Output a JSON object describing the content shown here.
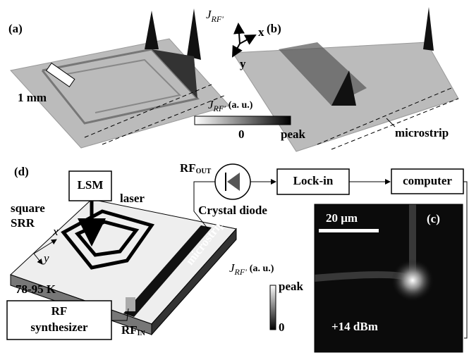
{
  "panel_a": {
    "label": "(a)",
    "scale_bar": "1 mm"
  },
  "panel_b": {
    "label": "(b)",
    "microstrip": "microstrip"
  },
  "axis_label": {
    "symbol": "J",
    "subscript": "RF'"
  },
  "axes": {
    "x": "x",
    "y": "y"
  },
  "colorbar_top": {
    "symbol": "J",
    "subscript": "RF'",
    "unit": "(a. u.)",
    "min": "0",
    "max": "peak"
  },
  "panel_d": {
    "label": "(d)",
    "lsm": "LSM",
    "laser": "laser",
    "srr": [
      "square",
      "SRR"
    ],
    "x": "x",
    "y": "y",
    "temperature": "78-95 K",
    "synthesizer": [
      "RF",
      "synthesizer"
    ],
    "rf_in": {
      "main": "RF",
      "sub": "IN"
    },
    "rf_out": {
      "main": "RF",
      "sub": "OUT"
    },
    "diode": "Crystal diode",
    "lockin": "Lock-in",
    "computer": "computer",
    "microstrip": "microstrip"
  },
  "panel_c": {
    "label": "(c)",
    "scale_bar": "20 μm",
    "power": "+14 dBm"
  },
  "colorbar_c": {
    "symbol": "J",
    "subscript": "RF'",
    "unit": "(a. u.)",
    "max": "peak",
    "min": "0"
  }
}
